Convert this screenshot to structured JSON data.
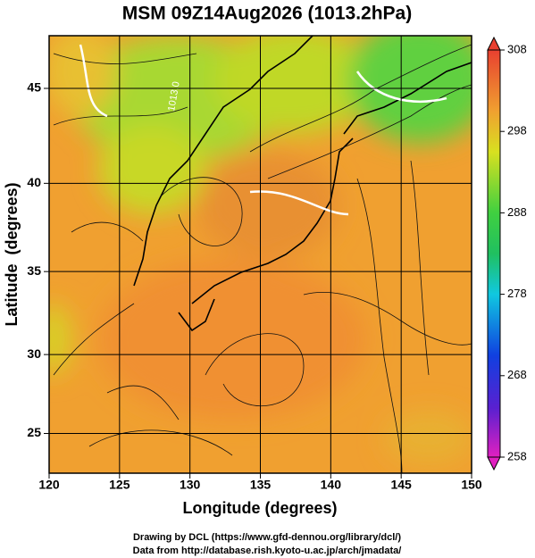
{
  "title": "MSM 09Z14Aug2026 (1013.2hPa)",
  "x_axis": {
    "label": "Longitude (degrees)",
    "lim": [
      120,
      150
    ],
    "ticks": [
      120,
      125,
      130,
      135,
      140,
      145,
      150
    ]
  },
  "y_axis": {
    "label": "Latitude  (degrees)",
    "lim": [
      22.4,
      47.6
    ],
    "ticks": [
      25,
      30,
      35,
      40,
      45
    ]
  },
  "colorbar": {
    "lim": [
      258,
      308
    ],
    "ticks": [
      258,
      268,
      278,
      288,
      298,
      308
    ]
  },
  "contour_labels": [
    "1013.0"
  ],
  "footer": [
    "Drawing by DCL (https://www.gfd-dennou.org/library/dcl/)",
    "Data from http://database.rish.kyoto-u.ac.jp/arch/jmadata/"
  ]
}
